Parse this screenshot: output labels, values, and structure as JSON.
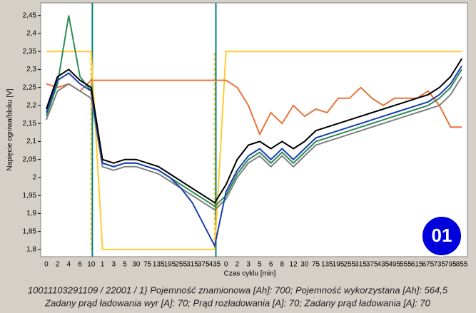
{
  "chart_data": {
    "type": "line",
    "y_label": "Napięcie ogniwa/bloku [V]",
    "x_label": "Czas cyklu [min]",
    "categories": [
      "0",
      "2",
      "4",
      "6",
      "10",
      "1",
      "3",
      "5",
      "30",
      "75",
      "135",
      "195",
      "255",
      "315",
      "375",
      "435",
      "0",
      "2",
      "3",
      "5",
      "6",
      "8",
      "12",
      "30",
      "75",
      "135",
      "195",
      "255",
      "315",
      "375",
      "435",
      "495",
      "555",
      "615",
      "675",
      "735",
      "795",
      "855"
    ],
    "ylim": [
      1.78,
      2.485
    ],
    "yticks": [
      {
        "value": 1.8,
        "label": "1,8"
      },
      {
        "value": 1.85,
        "label": "1,85"
      },
      {
        "value": 1.9,
        "label": "1,9"
      },
      {
        "value": 1.95,
        "label": "1,95"
      },
      {
        "value": 2,
        "label": "2"
      },
      {
        "value": 2.05,
        "label": "2,05"
      },
      {
        "value": 2.1,
        "label": "2,1"
      },
      {
        "value": 2.15,
        "label": "2,15"
      },
      {
        "value": 2.2,
        "label": "2,2"
      },
      {
        "value": 2.25,
        "label": "2,25"
      },
      {
        "value": 2.3,
        "label": "2,3"
      },
      {
        "value": 2.35,
        "label": "2,35"
      },
      {
        "value": 2.4,
        "label": "2,4"
      },
      {
        "value": 2.45,
        "label": "2,45"
      }
    ],
    "series": [
      {
        "color": "#ffcc33",
        "values": [
          2.35,
          2.35,
          2.35,
          2.35,
          2.35,
          1.8,
          1.8,
          1.8,
          1.8,
          1.8,
          1.8,
          1.8,
          1.8,
          1.8,
          1.8,
          1.8,
          2.35,
          2.35,
          2.35,
          2.35,
          2.35,
          2.35,
          2.35,
          2.35,
          2.35,
          2.35,
          2.35,
          2.35,
          2.35,
          2.35,
          2.35,
          2.35,
          2.35,
          2.35,
          2.35,
          2.35,
          2.35,
          2.35
        ]
      },
      {
        "color": "#e8743b",
        "values": [
          2.26,
          2.25,
          2.26,
          2.24,
          2.27,
          2.27,
          2.27,
          2.27,
          2.27,
          2.27,
          2.27,
          2.27,
          2.27,
          2.27,
          2.27,
          2.27,
          2.27,
          2.25,
          2.2,
          2.12,
          2.18,
          2.15,
          2.2,
          2.17,
          2.19,
          2.18,
          2.22,
          2.22,
          2.25,
          2.22,
          2.2,
          2.22,
          2.22,
          2.22,
          2.24,
          2.2,
          2.14,
          2.14
        ]
      },
      {
        "color": "#808080",
        "values": [
          2.16,
          2.24,
          2.26,
          2.24,
          2.22,
          2.03,
          2.02,
          2.03,
          2.03,
          2.02,
          2.01,
          1.99,
          1.97,
          1.95,
          1.93,
          1.91,
          1.94,
          2.0,
          2.04,
          2.06,
          2.03,
          2.06,
          2.03,
          2.06,
          2.09,
          2.1,
          2.11,
          2.12,
          2.13,
          2.14,
          2.15,
          2.16,
          2.17,
          2.18,
          2.19,
          2.2,
          2.23,
          2.28
        ]
      },
      {
        "color": "#2e8b57",
        "values": [
          2.17,
          2.26,
          2.45,
          2.28,
          2.24,
          2.04,
          2.03,
          2.04,
          2.04,
          2.03,
          2.02,
          2.0,
          1.98,
          1.96,
          1.94,
          1.92,
          1.95,
          2.01,
          2.05,
          2.07,
          2.04,
          2.07,
          2.04,
          2.07,
          2.1,
          2.11,
          2.12,
          2.13,
          2.14,
          2.15,
          2.16,
          2.17,
          2.18,
          2.19,
          2.2,
          2.22,
          2.25,
          2.3
        ]
      },
      {
        "color": "#1a3fb0",
        "values": [
          2.18,
          2.27,
          2.29,
          2.26,
          2.24,
          2.04,
          2.03,
          2.04,
          2.04,
          2.03,
          2.02,
          2.0,
          1.97,
          1.93,
          1.87,
          1.81,
          1.96,
          2.02,
          2.06,
          2.08,
          2.05,
          2.08,
          2.05,
          2.08,
          2.11,
          2.12,
          2.13,
          2.14,
          2.15,
          2.16,
          2.17,
          2.18,
          2.19,
          2.2,
          2.21,
          2.23,
          2.26,
          2.31
        ]
      },
      {
        "color": "#000000",
        "values": [
          2.19,
          2.28,
          2.3,
          2.27,
          2.25,
          2.05,
          2.04,
          2.05,
          2.05,
          2.04,
          2.03,
          2.01,
          1.99,
          1.97,
          1.95,
          1.93,
          1.98,
          2.05,
          2.09,
          2.1,
          2.08,
          2.1,
          2.08,
          2.1,
          2.13,
          2.14,
          2.15,
          2.16,
          2.17,
          2.18,
          2.19,
          2.2,
          2.21,
          2.22,
          2.23,
          2.25,
          2.28,
          2.33
        ]
      }
    ],
    "badge": "01"
  },
  "footer": [
    "10011103291109 / 22001 / 1} Pojemność znamionowa [Ah]: 700;  Pojemność wykorzystana [Ah]: 564,5",
    "Zadany prąd ładowania wyr [A]: 70;  Prąd rozładowania [A]: 70;  Zadany prąd ładowania [A]: 70"
  ]
}
